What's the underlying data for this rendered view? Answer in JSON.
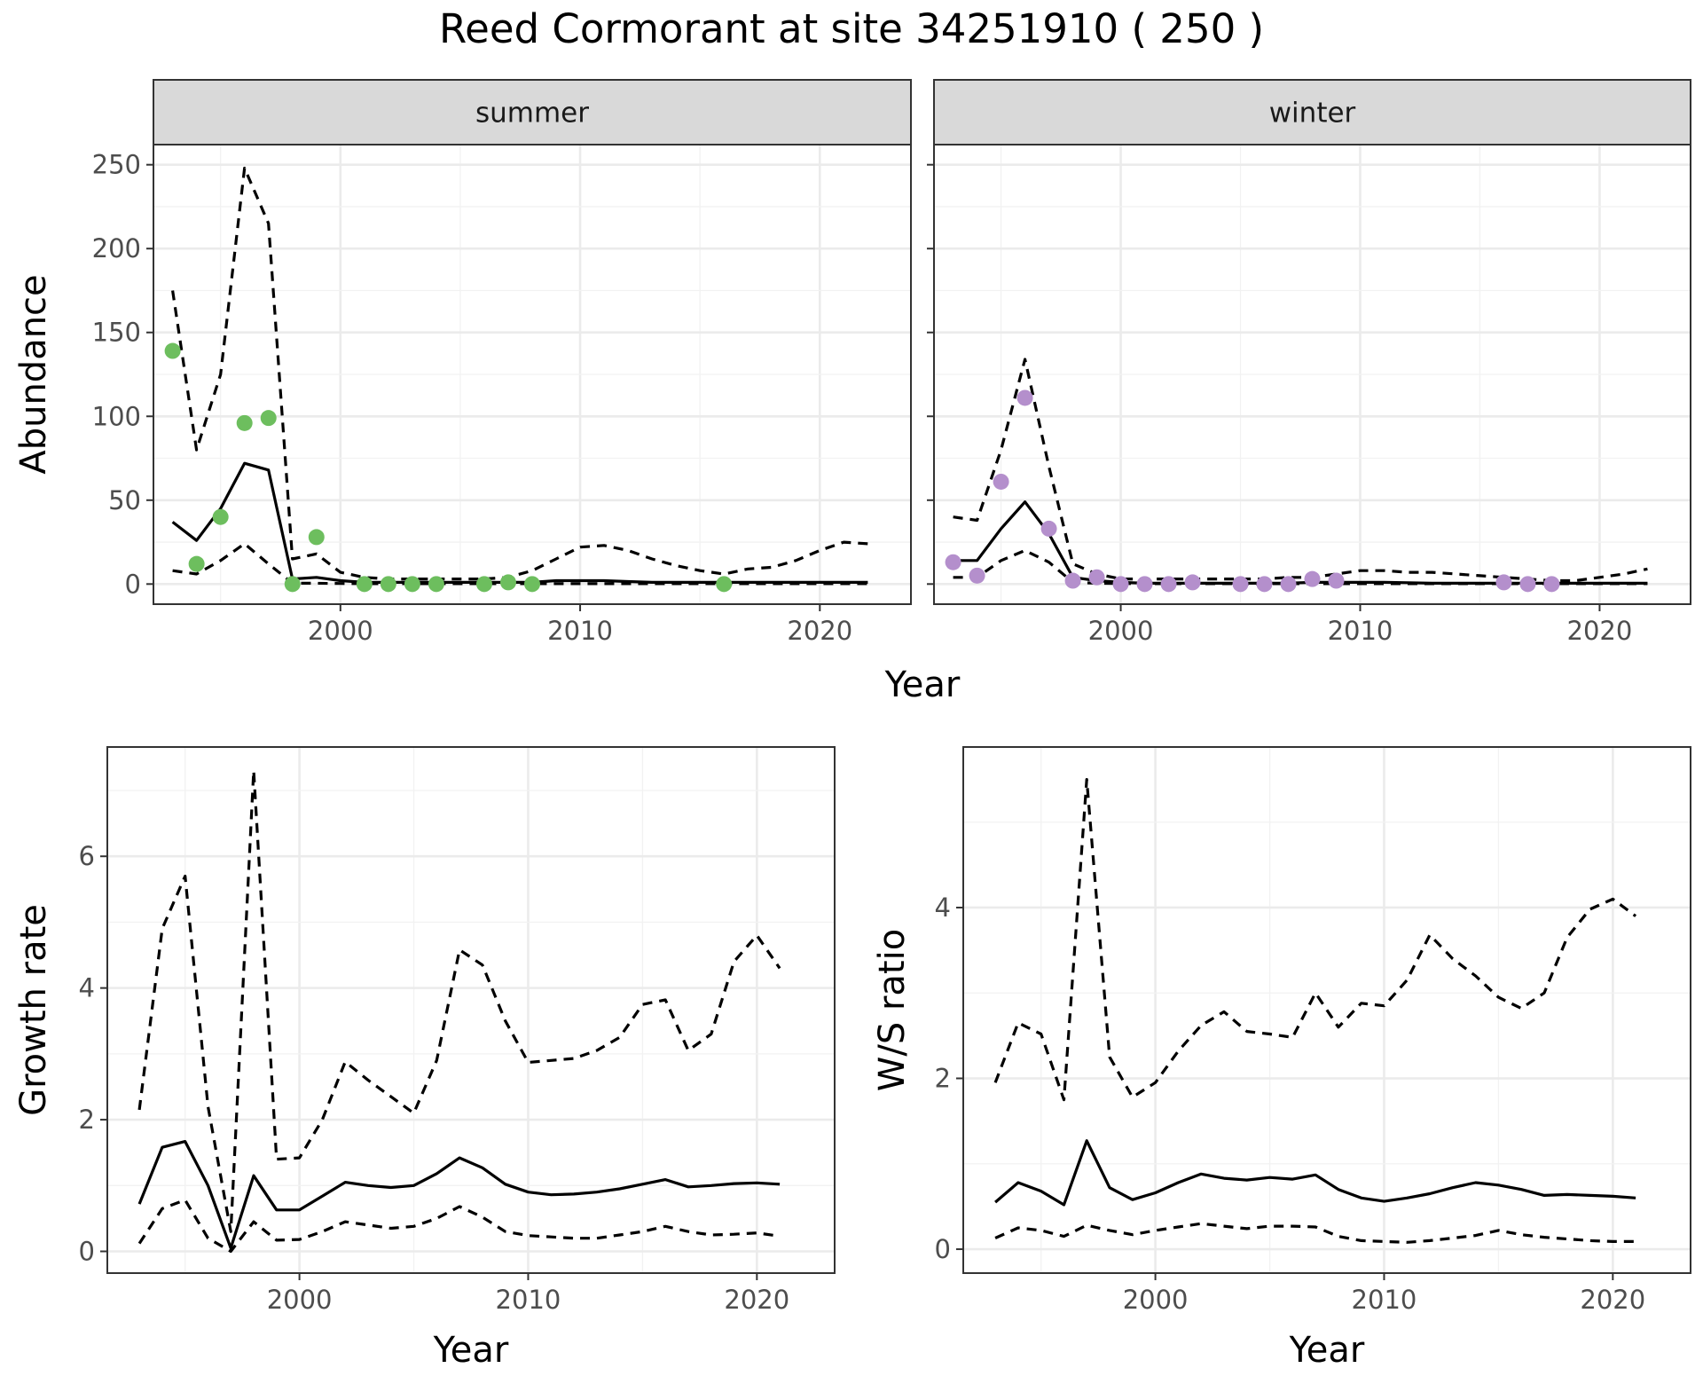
{
  "title": "Reed Cormorant at site 34251910 ( 250 )",
  "colors": {
    "summer_points": "#6dbe5e",
    "winter_points": "#b48fcc",
    "lines": "#000000"
  },
  "chart_data": [
    {
      "id": "abundance-summer",
      "type": "line",
      "strip_label": "summer",
      "ylabel": "Abundance",
      "xlabel": "Year",
      "xlim": [
        1992.2,
        2023.8
      ],
      "ylim": [
        -12,
        262
      ],
      "xticks": [
        2000,
        2010,
        2020
      ],
      "yticks": [
        0,
        50,
        100,
        150,
        200,
        250
      ],
      "series": [
        {
          "name": "estimate",
          "style": "solid",
          "x": [
            1993,
            1994,
            1995,
            1996,
            1997,
            1998,
            1999,
            2000,
            2001,
            2002,
            2003,
            2004,
            2005,
            2006,
            2007,
            2008,
            2009,
            2010,
            2011,
            2012,
            2013,
            2014,
            2015,
            2016,
            2017,
            2018,
            2019,
            2020,
            2021,
            2022
          ],
          "values": [
            37,
            26,
            45,
            72,
            68,
            3,
            4,
            2,
            1,
            1,
            1,
            1,
            1,
            1,
            1,
            1,
            2,
            2,
            2,
            1.5,
            1,
            1,
            1,
            1,
            1,
            1,
            1,
            1,
            1,
            1
          ]
        },
        {
          "name": "upper",
          "style": "dashed",
          "x": [
            1993,
            1994,
            1995,
            1996,
            1997,
            1998,
            1999,
            2000,
            2001,
            2002,
            2003,
            2004,
            2005,
            2006,
            2007,
            2008,
            2009,
            2010,
            2011,
            2012,
            2013,
            2014,
            2015,
            2016,
            2017,
            2018,
            2019,
            2020,
            2021,
            2022
          ],
          "values": [
            175,
            80,
            125,
            248,
            215,
            15,
            18,
            7,
            4,
            3,
            3,
            3,
            3,
            3,
            4,
            8,
            15,
            22,
            23,
            20,
            15,
            11,
            8,
            6,
            9,
            10,
            14,
            20,
            25,
            24
          ]
        },
        {
          "name": "lower",
          "style": "dashed",
          "x": [
            1993,
            1994,
            1995,
            1996,
            1997,
            1998,
            1999,
            2000,
            2001,
            2002,
            2003,
            2004,
            2005,
            2006,
            2007,
            2008,
            2009,
            2010,
            2011,
            2012,
            2013,
            2014,
            2015,
            2016,
            2017,
            2018,
            2019,
            2020,
            2021,
            2022
          ],
          "values": [
            8,
            6,
            14,
            24,
            12,
            0.5,
            0.5,
            0.3,
            0.2,
            0.2,
            0.2,
            0.2,
            0.2,
            0.2,
            0.2,
            0.2,
            0.2,
            0.2,
            0.2,
            0.2,
            0.2,
            0.2,
            0.2,
            0.2,
            0.2,
            0.2,
            0.2,
            0.2,
            0.2,
            0.2
          ]
        }
      ],
      "points": {
        "x": [
          1993,
          1994,
          1995,
          1996,
          1997,
          1998,
          1999,
          2001,
          2002,
          2003,
          2004,
          2006,
          2007,
          2008,
          2016
        ],
        "values": [
          139,
          12,
          40,
          96,
          99,
          0,
          28,
          0,
          0,
          0,
          0,
          0,
          1,
          0,
          0
        ]
      }
    },
    {
      "id": "abundance-winter",
      "type": "line",
      "strip_label": "winter",
      "xlabel": "Year",
      "xlim": [
        1992.2,
        2023.8
      ],
      "ylim": [
        -12,
        262
      ],
      "xticks": [
        2000,
        2010,
        2020
      ],
      "series": [
        {
          "name": "estimate",
          "style": "solid",
          "x": [
            1993,
            1994,
            1995,
            1996,
            1997,
            1998,
            1999,
            2000,
            2001,
            2002,
            2003,
            2004,
            2005,
            2006,
            2007,
            2008,
            2009,
            2010,
            2011,
            2012,
            2013,
            2014,
            2015,
            2016,
            2017,
            2018,
            2019,
            2020,
            2021,
            2022
          ],
          "values": [
            14,
            14,
            33,
            49,
            30,
            4,
            2,
            1,
            0.5,
            0.5,
            0.5,
            0.5,
            0.5,
            0.5,
            0.5,
            1,
            1,
            1,
            1,
            0.8,
            0.5,
            0.5,
            0.5,
            0.5,
            0.5,
            0.5,
            0.5,
            0.5,
            0.5,
            0.5
          ]
        },
        {
          "name": "upper",
          "style": "dashed",
          "x": [
            1993,
            1994,
            1995,
            1996,
            1997,
            1998,
            1999,
            2000,
            2001,
            2002,
            2003,
            2004,
            2005,
            2006,
            2007,
            2008,
            2009,
            2010,
            2011,
            2012,
            2013,
            2014,
            2015,
            2016,
            2017,
            2018,
            2019,
            2020,
            2021,
            2022
          ],
          "values": [
            40,
            38,
            80,
            134,
            70,
            12,
            6,
            3,
            3,
            3,
            3,
            3,
            3,
            3,
            4,
            4,
            6,
            8,
            8,
            7,
            7,
            6,
            5,
            4,
            3,
            2,
            2,
            4,
            6,
            9
          ]
        },
        {
          "name": "lower",
          "style": "dashed",
          "x": [
            1993,
            1994,
            1995,
            1996,
            1997,
            1998,
            1999,
            2000,
            2001,
            2002,
            2003,
            2004,
            2005,
            2006,
            2007,
            2008,
            2009,
            2010,
            2011,
            2012,
            2013,
            2014,
            2015,
            2016,
            2017,
            2018,
            2019,
            2020,
            2021,
            2022
          ],
          "values": [
            4,
            4,
            14,
            20,
            13,
            1,
            0.5,
            0.3,
            0.2,
            0.2,
            0.2,
            0.2,
            0.2,
            0.2,
            0.2,
            0.2,
            0.2,
            0.2,
            0.2,
            0.2,
            0.2,
            0.2,
            0.2,
            0.2,
            0.2,
            0.2,
            0.2,
            0.2,
            0.2,
            0.2
          ]
        }
      ],
      "points": {
        "x": [
          1993,
          1994,
          1995,
          1996,
          1997,
          1998,
          1999,
          2000,
          2001,
          2002,
          2003,
          2005,
          2006,
          2007,
          2008,
          2009,
          2016,
          2017,
          2018
        ],
        "values": [
          13,
          5,
          61,
          111,
          33,
          2,
          4,
          0,
          0,
          0,
          1,
          0,
          0,
          0,
          3,
          2,
          1,
          0,
          0
        ]
      }
    },
    {
      "id": "growth-rate",
      "type": "line",
      "ylabel": "Growth rate",
      "xlabel": "Year",
      "xlim": [
        1991.6,
        2023.4
      ],
      "ylim": [
        -0.33,
        7.66
      ],
      "xticks": [
        2000,
        2010,
        2020
      ],
      "yticks": [
        0,
        2,
        4,
        6
      ],
      "series": [
        {
          "name": "estimate",
          "style": "solid",
          "x": [
            1993,
            1994,
            1995,
            1996,
            1997,
            1998,
            1999,
            2000,
            2001,
            2002,
            2003,
            2004,
            2005,
            2006,
            2007,
            2008,
            2009,
            2010,
            2011,
            2012,
            2013,
            2014,
            2015,
            2016,
            2017,
            2018,
            2019,
            2020,
            2021
          ],
          "values": [
            0.72,
            1.58,
            1.67,
            1.0,
            0.05,
            1.15,
            0.63,
            0.63,
            0.84,
            1.05,
            1.0,
            0.97,
            1.0,
            1.18,
            1.42,
            1.27,
            1.02,
            0.9,
            0.86,
            0.87,
            0.9,
            0.95,
            1.02,
            1.09,
            0.98,
            1.0,
            1.03,
            1.04,
            1.02
          ]
        },
        {
          "name": "upper",
          "style": "dashed",
          "x": [
            1993,
            1994,
            1995,
            1996,
            1997,
            1998,
            1999,
            2000,
            2001,
            2002,
            2003,
            2004,
            2005,
            2006,
            2007,
            2008,
            2009,
            2010,
            2011,
            2012,
            2013,
            2014,
            2015,
            2016,
            2017,
            2018,
            2019,
            2020,
            2021
          ],
          "values": [
            2.15,
            4.9,
            5.7,
            2.2,
            0.3,
            7.3,
            1.4,
            1.42,
            2.0,
            2.88,
            2.6,
            2.35,
            2.1,
            2.9,
            4.58,
            4.35,
            3.5,
            2.87,
            2.9,
            2.93,
            3.05,
            3.25,
            3.75,
            3.82,
            3.05,
            3.3,
            4.4,
            4.8,
            4.3
          ]
        },
        {
          "name": "lower",
          "style": "dashed",
          "x": [
            1993,
            1994,
            1995,
            1996,
            1997,
            1998,
            1999,
            2000,
            2001,
            2002,
            2003,
            2004,
            2005,
            2006,
            2007,
            2008,
            2009,
            2010,
            2011,
            2012,
            2013,
            2014,
            2015,
            2016,
            2017,
            2018,
            2019,
            2020,
            2021
          ],
          "values": [
            0.12,
            0.65,
            0.78,
            0.2,
            0.0,
            0.45,
            0.17,
            0.18,
            0.3,
            0.45,
            0.4,
            0.35,
            0.38,
            0.5,
            0.68,
            0.52,
            0.3,
            0.24,
            0.22,
            0.2,
            0.2,
            0.25,
            0.3,
            0.38,
            0.3,
            0.25,
            0.26,
            0.28,
            0.23
          ]
        }
      ]
    },
    {
      "id": "ws-ratio",
      "type": "line",
      "ylabel": "W/S ratio",
      "xlabel": "Year",
      "xlim": [
        1991.6,
        2023.4
      ],
      "ylim": [
        -0.28,
        5.88
      ],
      "xticks": [
        2000,
        2010,
        2020
      ],
      "yticks": [
        0,
        2,
        4
      ],
      "series": [
        {
          "name": "estimate",
          "style": "solid",
          "x": [
            1993,
            1994,
            1995,
            1996,
            1997,
            1998,
            1999,
            2000,
            2001,
            2002,
            2003,
            2004,
            2005,
            2006,
            2007,
            2008,
            2009,
            2010,
            2011,
            2012,
            2013,
            2014,
            2015,
            2016,
            2017,
            2018,
            2019,
            2020,
            2021
          ],
          "values": [
            0.55,
            0.78,
            0.68,
            0.52,
            1.27,
            0.72,
            0.58,
            0.66,
            0.78,
            0.88,
            0.83,
            0.81,
            0.84,
            0.82,
            0.87,
            0.7,
            0.6,
            0.56,
            0.6,
            0.65,
            0.72,
            0.78,
            0.75,
            0.7,
            0.63,
            0.64,
            0.63,
            0.62,
            0.6
          ]
        },
        {
          "name": "upper",
          "style": "dashed",
          "x": [
            1993,
            1994,
            1995,
            1996,
            1997,
            1998,
            1999,
            2000,
            2001,
            2002,
            2003,
            2004,
            2005,
            2006,
            2007,
            2008,
            2009,
            2010,
            2011,
            2012,
            2013,
            2014,
            2015,
            2016,
            2017,
            2018,
            2019,
            2020,
            2021
          ],
          "values": [
            1.95,
            2.65,
            2.52,
            1.75,
            5.5,
            2.25,
            1.78,
            1.95,
            2.32,
            2.62,
            2.78,
            2.55,
            2.52,
            2.48,
            3.0,
            2.6,
            2.88,
            2.85,
            3.15,
            3.68,
            3.4,
            3.2,
            2.95,
            2.82,
            3.0,
            3.65,
            3.98,
            4.1,
            3.9
          ]
        },
        {
          "name": "lower",
          "style": "dashed",
          "x": [
            1993,
            1994,
            1995,
            1996,
            1997,
            1998,
            1999,
            2000,
            2001,
            2002,
            2003,
            2004,
            2005,
            2006,
            2007,
            2008,
            2009,
            2010,
            2011,
            2012,
            2013,
            2014,
            2015,
            2016,
            2017,
            2018,
            2019,
            2020,
            2021
          ],
          "values": [
            0.13,
            0.25,
            0.22,
            0.15,
            0.28,
            0.22,
            0.17,
            0.22,
            0.26,
            0.3,
            0.27,
            0.24,
            0.27,
            0.27,
            0.26,
            0.15,
            0.1,
            0.09,
            0.08,
            0.1,
            0.13,
            0.16,
            0.22,
            0.17,
            0.14,
            0.12,
            0.1,
            0.09,
            0.09
          ]
        }
      ]
    }
  ]
}
